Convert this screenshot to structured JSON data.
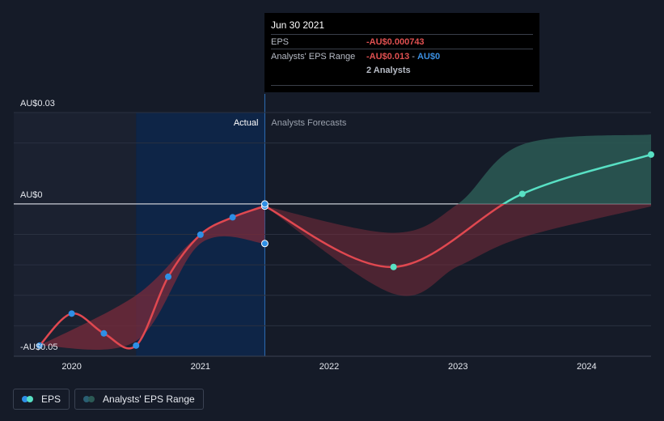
{
  "chart_data": {
    "type": "line",
    "y_axis": {
      "ticks": [
        {
          "value": 0.03,
          "label": "AU$0.03"
        },
        {
          "value": 0,
          "label": "AU$0"
        },
        {
          "value": -0.05,
          "label": "-AU$0.05"
        }
      ],
      "ylim": [
        -0.05,
        0.03
      ]
    },
    "x_axis": {
      "ticks": [
        {
          "value": 2020.0,
          "label": "2020"
        },
        {
          "value": 2021.0,
          "label": "2021"
        },
        {
          "value": 2022.0,
          "label": "2022"
        },
        {
          "value": 2023.0,
          "label": "2023"
        },
        {
          "value": 2024.0,
          "label": "2024"
        }
      ],
      "xlim": [
        2019.55,
        2024.5
      ]
    },
    "sections": {
      "actual_label": "Actual",
      "forecast_label": "Analysts Forecasts",
      "divider_x": 2021.5
    },
    "series": [
      {
        "name": "EPS",
        "actual": [
          {
            "x": 2019.75,
            "y": -0.0465
          },
          {
            "x": 2020.0,
            "y": -0.036
          },
          {
            "x": 2020.25,
            "y": -0.0425
          },
          {
            "x": 2020.5,
            "y": -0.0465
          },
          {
            "x": 2020.75,
            "y": -0.0239
          },
          {
            "x": 2021.0,
            "y": -0.0101
          },
          {
            "x": 2021.25,
            "y": -0.0044
          },
          {
            "x": 2021.5,
            "y": -0.000743
          }
        ],
        "forecast": [
          {
            "x": 2021.5,
            "y": -0.000743
          },
          {
            "x": 2022.5,
            "y": -0.0207
          },
          {
            "x": 2023.5,
            "y": 0.0033
          },
          {
            "x": 2024.5,
            "y": 0.0162
          }
        ]
      },
      {
        "name": "Analysts' EPS Range",
        "past_range": [
          {
            "x": 2020.5,
            "low": -0.045,
            "high": -0.03
          },
          {
            "x": 2021.0,
            "low": -0.013,
            "high": -0.01
          },
          {
            "x": 2021.5,
            "low": -0.013,
            "high": 0.0
          }
        ],
        "forecast_range": [
          {
            "x": 2021.5,
            "low": -0.000743,
            "high": -0.000743
          },
          {
            "x": 2022.5,
            "low": -0.0295,
            "high": -0.0095
          },
          {
            "x": 2023.0,
            "low": -0.0205,
            "high": 0.0
          },
          {
            "x": 2023.5,
            "low": -0.011,
            "high": 0.0195
          },
          {
            "x": 2024.5,
            "low": -0.0008,
            "high": 0.0228
          }
        ]
      }
    ],
    "extra_points": [
      {
        "x": 2021.5,
        "y": -0.013
      },
      {
        "x": 2021.5,
        "y": 0.0
      }
    ],
    "colors": {
      "background": "#151b28",
      "past_shade": "#1b2130",
      "highlight": "#0e2547",
      "line_negative": "#e04850",
      "line_positive": "#58e0c4",
      "dot_actual": "#2e8fe6",
      "band_negative": "#7a2b3b",
      "band_positive": "#2c5a55"
    }
  },
  "tooltip": {
    "date": "Jun 30 2021",
    "eps_key": "EPS",
    "eps_value": "-AU$0.000743",
    "range_key": "Analysts' EPS Range",
    "range_low": "-AU$0.013",
    "range_sep": " - ",
    "range_high": "AU$0",
    "analysts": "2 Analysts"
  },
  "legend": {
    "eps_label": "EPS",
    "range_label": "Analysts' EPS Range"
  }
}
